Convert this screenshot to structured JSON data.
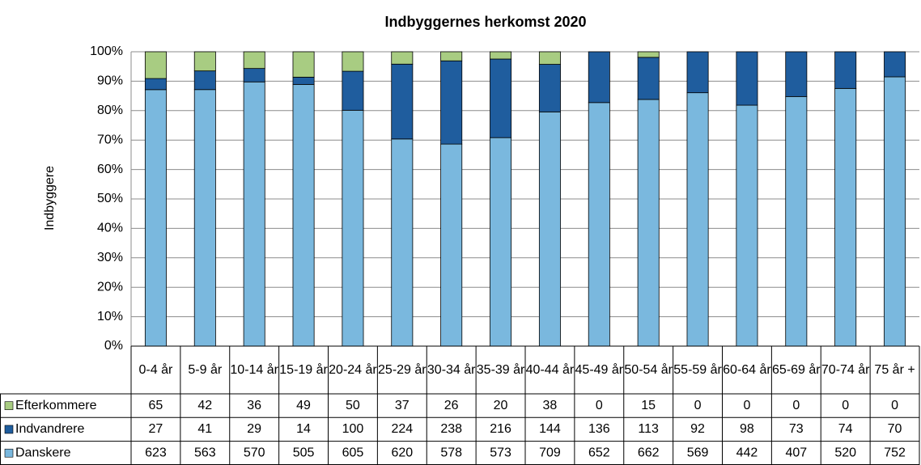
{
  "chart_data": {
    "type": "bar",
    "stacking": "percent",
    "title": "Indbyggernes herkomst 2020",
    "y_label": "Indbyggere",
    "categories": [
      "0-4 år",
      "5-9 år",
      "10-14 år",
      "15-19 år",
      "20-24 år",
      "25-29 år",
      "30-34 år",
      "35-39 år",
      "40-44 år",
      "45-49 år",
      "50-54 år",
      "55-59 år",
      "60-64 år",
      "65-69 år",
      "70-74 år",
      "75 år +"
    ],
    "series": [
      {
        "name": "Efterkommere",
        "color": "#a8cc82",
        "values": [
          65,
          42,
          36,
          49,
          50,
          37,
          26,
          20,
          38,
          0,
          15,
          0,
          0,
          0,
          0,
          0
        ]
      },
      {
        "name": "Indvandrere",
        "color": "#1f5d9e",
        "values": [
          27,
          41,
          29,
          14,
          100,
          224,
          238,
          216,
          144,
          136,
          113,
          92,
          98,
          73,
          74,
          70
        ]
      },
      {
        "name": "Danskere",
        "color": "#7ab8de",
        "values": [
          623,
          563,
          570,
          505,
          605,
          620,
          578,
          573,
          709,
          652,
          662,
          569,
          442,
          407,
          520,
          752
        ]
      }
    ],
    "ylim": [
      0,
      100
    ],
    "yticks": [
      {
        "value": 0,
        "label": "0%"
      },
      {
        "value": 10,
        "label": "10%"
      },
      {
        "value": 20,
        "label": "20%"
      },
      {
        "value": 30,
        "label": "30%"
      },
      {
        "value": 40,
        "label": "40%"
      },
      {
        "value": 50,
        "label": "50%"
      },
      {
        "value": 60,
        "label": "60%"
      },
      {
        "value": 70,
        "label": "70%"
      },
      {
        "value": 80,
        "label": "80%"
      },
      {
        "value": 90,
        "label": "90%"
      },
      {
        "value": 100,
        "label": "100%"
      }
    ],
    "grid": true,
    "legend": "table"
  }
}
